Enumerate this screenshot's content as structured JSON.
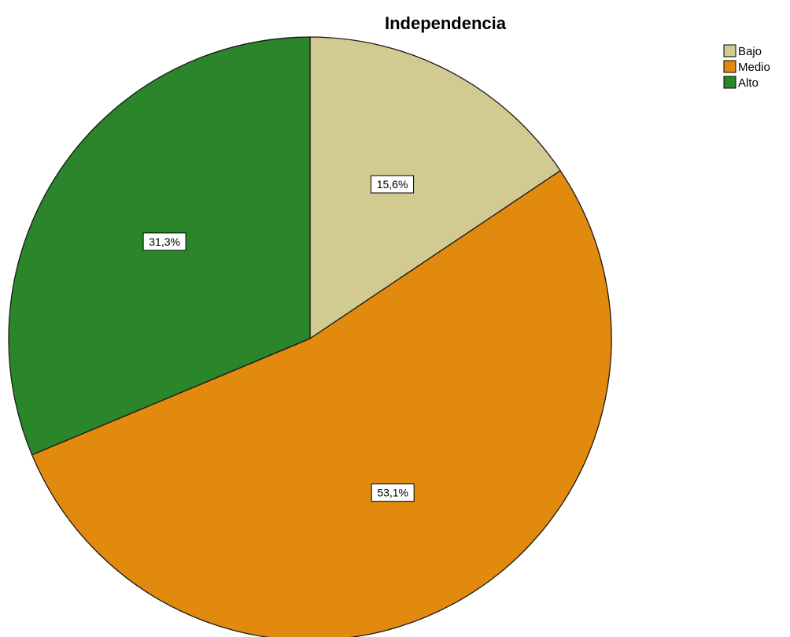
{
  "chart_data": {
    "type": "pie",
    "title": "Independencia",
    "slices": [
      {
        "label": "Bajo",
        "value": 15.6,
        "value_label": "15,6%",
        "color": "#d1cb92"
      },
      {
        "label": "Medio",
        "value": 53.1,
        "value_label": "53,1%",
        "color": "#e18a0e"
      },
      {
        "label": "Alto",
        "value": 31.3,
        "value_label": "31,3%",
        "color": "#2b852a"
      }
    ],
    "start_angle": "12 o'clock",
    "direction": "clockwise",
    "legend": {
      "position": "top-right",
      "entries": [
        "Bajo",
        "Medio",
        "Alto"
      ]
    }
  }
}
